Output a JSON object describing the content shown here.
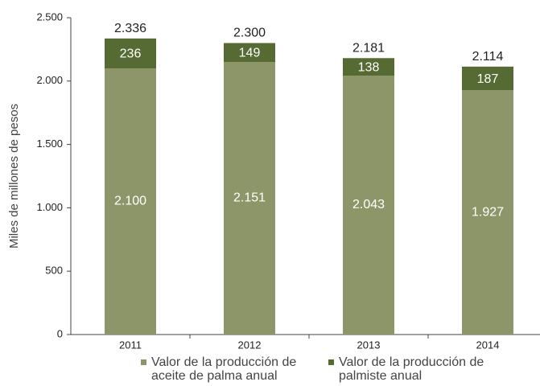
{
  "chart_data": {
    "type": "stacked_bar",
    "y_label": "Miles de millones de pesos",
    "categories": [
      "2011",
      "2012",
      "2013",
      "2014"
    ],
    "series": [
      {
        "name": "Valor de la producción de aceite de palma anual",
        "color": "#8c9669",
        "values": [
          2100,
          2151,
          2043,
          1927
        ],
        "value_labels": [
          "2.100",
          "2.151",
          "2.043",
          "1.927"
        ]
      },
      {
        "name": "Valor de la producción de palmiste anual",
        "color": "#566b33",
        "values": [
          236,
          149,
          138,
          187
        ]
      }
    ],
    "totals": {
      "values": [
        2336,
        2300,
        2181,
        2114
      ],
      "value_labels": [
        "2.336",
        "2.300",
        "2.181",
        "2.114"
      ]
    },
    "ylim": [
      0,
      2500
    ],
    "yticks": [
      0,
      500,
      {
        "value": 1000,
        "label": "1.000"
      },
      {
        "value": 1500,
        "label": "1.500"
      },
      {
        "value": 2000,
        "label": "2.000"
      },
      {
        "value": 2500,
        "label": "2.500"
      }
    ],
    "legend": "bottom"
  }
}
